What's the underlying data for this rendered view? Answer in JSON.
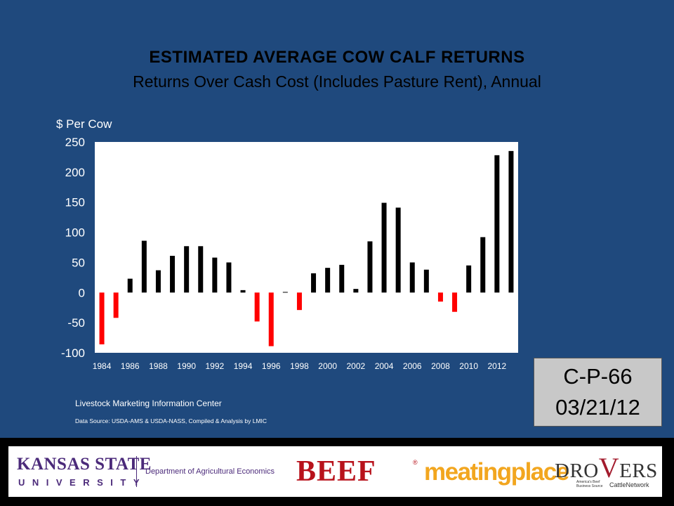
{
  "slide": {
    "title": "ESTIMATED  AVERAGE  COW  CALF  RETURNS",
    "subtitle": "Returns Over Cash Cost (Includes Pasture Rent), Annual",
    "stamp_code": "C-P-66",
    "stamp_date": "03/21/12",
    "source_org": "Livestock Marketing Information Center",
    "source_note": "Data Source:  USDA-AMS & USDA-NASS, Compiled & Analysis by LMIC"
  },
  "footer": {
    "ksu_name": "KANSAS STATE",
    "ksu_univ": "UNIVERSITY",
    "ksu_dept": "Department of Agricultural Economics",
    "beef": "BEEF",
    "beef_mark": "®",
    "meatingplace": "meatingplace",
    "drovers_a": "DRO",
    "drovers_v": "V",
    "drovers_b": "ERS",
    "drovers_tagline": "America's Beef Business Source",
    "drovers_network": "CattleNetwork"
  },
  "colors": {
    "background": "#1f497d",
    "plot_area": "#ffffff",
    "positive_bar": "#000000",
    "negative_bar": "#ff0000"
  },
  "chart_data": {
    "type": "bar",
    "title": "",
    "ylabel": "$ Per Cow",
    "xlabel": "",
    "ylim": [
      -100,
      250
    ],
    "yticks": [
      250,
      200,
      150,
      100,
      50,
      0,
      -50,
      -100
    ],
    "grid": false,
    "legend": "none",
    "categories": [
      1984,
      1985,
      1986,
      1987,
      1988,
      1989,
      1990,
      1991,
      1992,
      1993,
      1994,
      1995,
      1996,
      1997,
      1998,
      1999,
      2000,
      2001,
      2002,
      2003,
      2004,
      2005,
      2006,
      2007,
      2008,
      2009,
      2010,
      2011,
      2012,
      2013
    ],
    "xtick_labels": [
      "1984",
      "1986",
      "1988",
      "1990",
      "1992",
      "1994",
      "1996",
      "1998",
      "2000",
      "2002",
      "2004",
      "2006",
      "2008",
      "2010",
      "2012"
    ],
    "values": [
      -86,
      -42,
      23,
      86,
      37,
      61,
      77,
      77,
      58,
      50,
      4,
      -48,
      -89,
      1,
      -29,
      32,
      41,
      46,
      6,
      85,
      149,
      141,
      50,
      38,
      -15,
      -32,
      45,
      92,
      228,
      235
    ]
  }
}
